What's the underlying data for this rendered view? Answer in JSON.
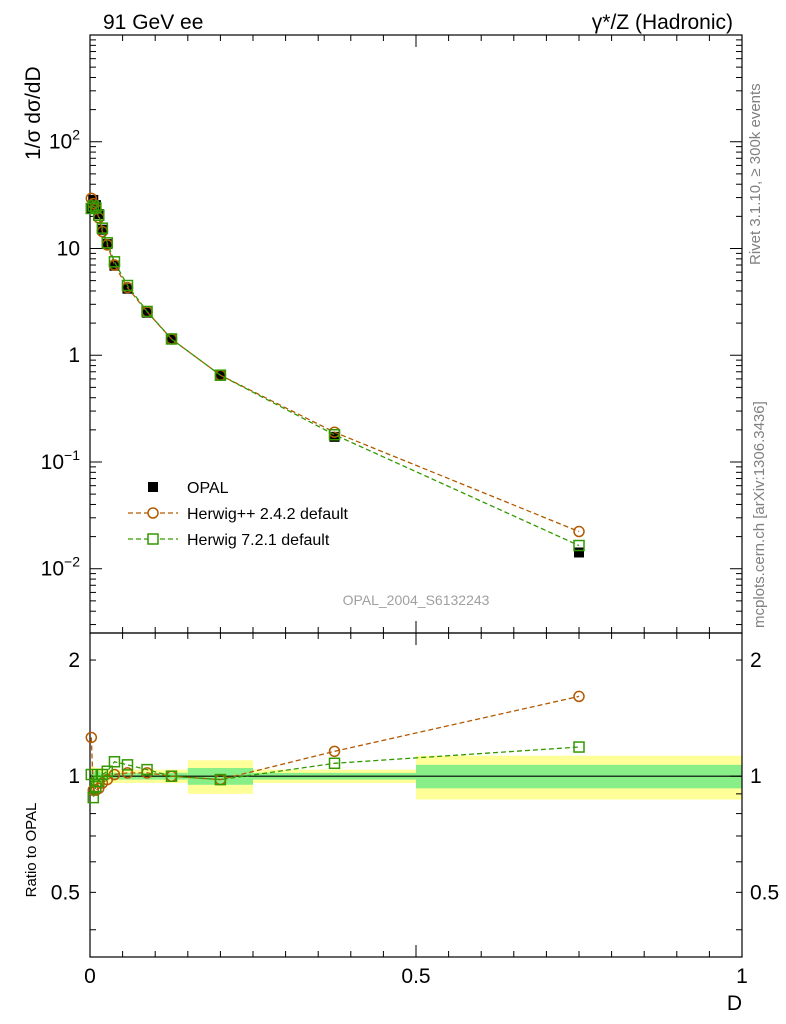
{
  "header": {
    "left_label": "91 GeV ee",
    "right_label": "γ*/Z (Hadronic)"
  },
  "side_labels": {
    "rivet": "Rivet 3.1.10, ≥ 300k events",
    "mcplots": "mcplots.cern.ch [arXiv:1306.3436]"
  },
  "watermark": "OPAL_2004_S6132243",
  "colors": {
    "data": "#000000",
    "herwigpp": "#b35900",
    "herwig7": "#339900",
    "band_inner": "#88ee88",
    "band_outer": "#ffff99"
  },
  "legend": [
    {
      "label": "OPAL",
      "marker": "filled-square"
    },
    {
      "label": "Herwig++ 2.4.2 default",
      "marker": "open-circle"
    },
    {
      "label": "Herwig 7.2.1 default",
      "marker": "open-square"
    }
  ],
  "chart_data": [
    {
      "type": "scatter",
      "panel": "main",
      "ylabel": "1/σ dσ/dD",
      "yscale": "log",
      "xlim": [
        0,
        1
      ],
      "ylim": [
        0.0025,
        1000
      ],
      "y_tick_labels": [
        {
          "value": 0.01,
          "base": "10",
          "exp": "−2"
        },
        {
          "value": 0.1,
          "base": "10",
          "exp": "−1"
        },
        {
          "value": 1,
          "text": "1"
        },
        {
          "value": 10,
          "text": "10"
        },
        {
          "value": 100,
          "base": "10",
          "exp": "2"
        }
      ],
      "x": [
        0.002,
        0.005,
        0.009,
        0.0135,
        0.019,
        0.0265,
        0.0375,
        0.0575,
        0.0875,
        0.125,
        0.2,
        0.375,
        0.75
      ],
      "series": [
        {
          "name": "OPAL",
          "values": [
            23.5,
            28.5,
            25.5,
            21,
            15,
            11,
            6.9,
            4.2,
            2.5,
            1.42,
            0.66,
            0.172,
            0.0142
          ]
        },
        {
          "name": "Herwig++ 2.4.2 default",
          "values": [
            29.5,
            26.3,
            23.5,
            19.4,
            14.4,
            10.8,
            7.0,
            4.3,
            2.55,
            1.42,
            0.65,
            0.19,
            0.0223
          ]
        },
        {
          "name": "Herwig 7.2.1 default",
          "values": [
            23.7,
            25.0,
            24.0,
            20.5,
            15.5,
            11.3,
            7.5,
            4.5,
            2.57,
            1.42,
            0.65,
            0.18,
            0.0165
          ]
        }
      ]
    },
    {
      "type": "scatter",
      "panel": "ratio",
      "ylabel": "Ratio to OPAL",
      "xlabel": "D",
      "xlim": [
        0,
        1
      ],
      "ylim": [
        0.34,
        2.35
      ],
      "y_tick_labels": [
        "0.5",
        "1",
        "2"
      ],
      "x_tick_labels": [
        "0",
        "0.5",
        "1"
      ],
      "x": [
        0.002,
        0.005,
        0.009,
        0.0135,
        0.019,
        0.0265,
        0.0375,
        0.0575,
        0.0875,
        0.125,
        0.2,
        0.375,
        0.75
      ],
      "series": [
        {
          "name": "Herwig++ 2.4.2 default",
          "values": [
            1.26,
            0.92,
            0.92,
            0.93,
            0.96,
            0.98,
            1.01,
            1.02,
            1.02,
            1.0,
            0.98,
            1.16,
            1.61
          ]
        },
        {
          "name": "Herwig 7.2.1 default",
          "values": [
            1.01,
            0.88,
            0.94,
            0.97,
            1.01,
            1.03,
            1.09,
            1.07,
            1.04,
            1.0,
            0.98,
            1.08,
            1.19
          ]
        }
      ],
      "uncertainty_bands": [
        {
          "x_range": [
            0,
            0.003
          ],
          "inner": 0.03,
          "outer": 0.06
        },
        {
          "x_range": [
            0.003,
            0.007
          ],
          "inner": 0.03,
          "outer": 0.06
        },
        {
          "x_range": [
            0.007,
            0.011
          ],
          "inner": 0.03,
          "outer": 0.05
        },
        {
          "x_range": [
            0.011,
            0.016
          ],
          "inner": 0.03,
          "outer": 0.05
        },
        {
          "x_range": [
            0.016,
            0.022
          ],
          "inner": 0.02,
          "outer": 0.05
        },
        {
          "x_range": [
            0.022,
            0.031
          ],
          "inner": 0.02,
          "outer": 0.04
        },
        {
          "x_range": [
            0.031,
            0.044
          ],
          "inner": 0.02,
          "outer": 0.04
        },
        {
          "x_range": [
            0.044,
            0.071
          ],
          "inner": 0.02,
          "outer": 0.04
        },
        {
          "x_range": [
            0.071,
            0.104
          ],
          "inner": 0.02,
          "outer": 0.04
        },
        {
          "x_range": [
            0.104,
            0.15
          ],
          "inner": 0.02,
          "outer": 0.04
        },
        {
          "x_range": [
            0.15,
            0.25
          ],
          "inner": 0.05,
          "outer": 0.1
        },
        {
          "x_range": [
            0.25,
            0.5
          ],
          "inner": 0.02,
          "outer": 0.04
        },
        {
          "x_range": [
            0.5,
            1.0
          ],
          "inner": 0.07,
          "outer": 0.13
        }
      ]
    }
  ]
}
